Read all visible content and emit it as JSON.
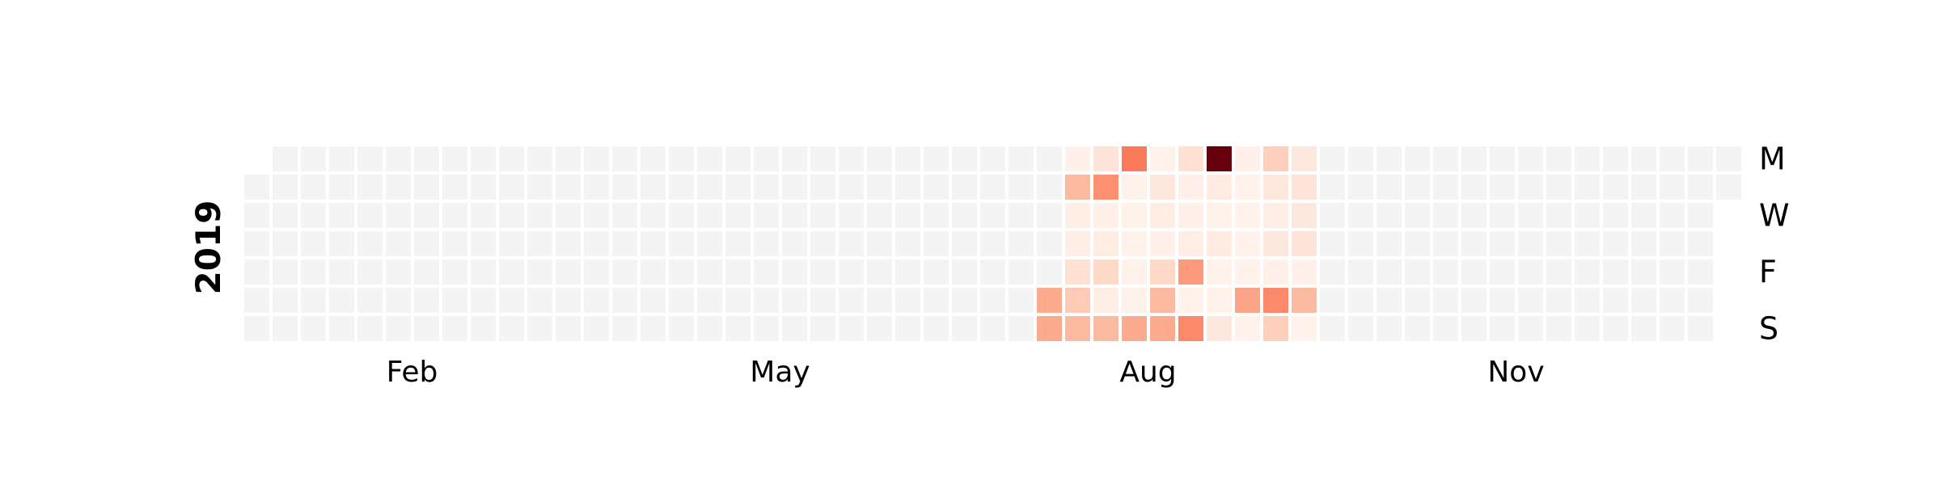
{
  "chart_data": {
    "type": "heatmap",
    "year": "2019",
    "month_ticks": [
      "Feb",
      "May",
      "Aug",
      "Nov"
    ],
    "day_labels": [
      "M",
      "W",
      "F",
      "S"
    ],
    "empty_color": "#f4f4f4",
    "colormap": [
      "#fff5f0",
      "#fee0d2",
      "#fcbba1",
      "#fc9272",
      "#fb6a4a",
      "#ef3b2c",
      "#cb181d",
      "#a50f15",
      "#67000d"
    ],
    "value_range": [
      0,
      1
    ],
    "values_by_week": {
      "28": [
        null,
        null,
        null,
        null,
        null,
        0.3,
        0.3
      ],
      "29": [
        0.03,
        0.25,
        0.04,
        0.04,
        0.12,
        0.2,
        0.25
      ],
      "30": [
        0.1,
        0.38,
        0.03,
        0.05,
        0.15,
        0.04,
        0.25
      ],
      "31": [
        0.45,
        0.02,
        0.02,
        0.02,
        0.02,
        0.02,
        0.3
      ],
      "32": [
        0.02,
        0.08,
        0.05,
        0.03,
        0.15,
        0.25,
        0.3
      ],
      "33": [
        0.12,
        0.03,
        0.03,
        0.04,
        0.35,
        0.02,
        0.4
      ],
      "34": [
        1.0,
        0.06,
        0.02,
        0.06,
        0.02,
        0.02,
        0.08
      ],
      "35": [
        0.03,
        0.02,
        0.02,
        0.02,
        0.02,
        0.32,
        0.02
      ],
      "36": [
        0.18,
        0.08,
        0.04,
        0.08,
        0.03,
        0.4,
        0.18
      ],
      "37": [
        0.08,
        0.1,
        0.08,
        0.1,
        0.03,
        0.25,
        0.02
      ]
    }
  }
}
